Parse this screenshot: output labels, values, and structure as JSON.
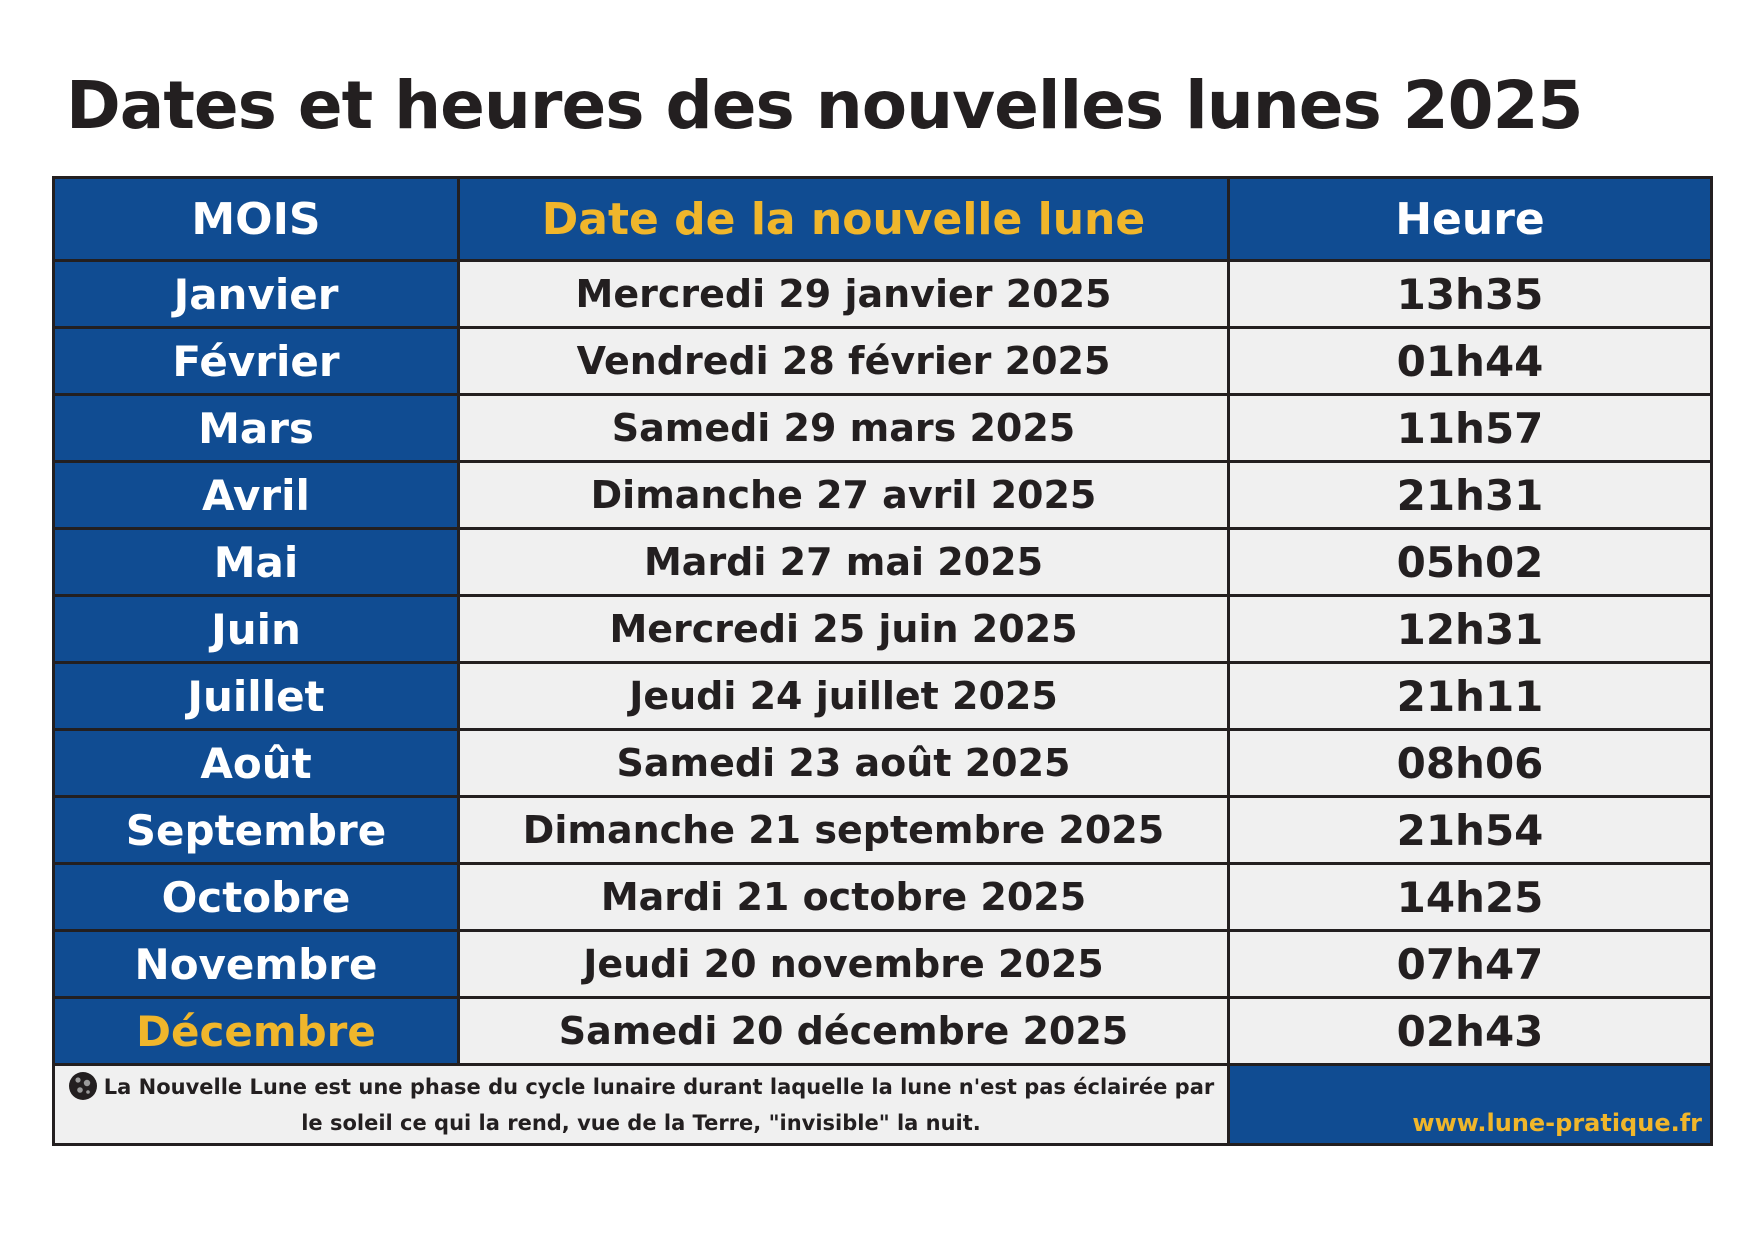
{
  "title": "Dates et heures des nouvelles lunes 2025",
  "table": {
    "headers": {
      "month": "MOIS",
      "date": "Date de la nouvelle lune",
      "time": "Heure"
    },
    "rows": [
      {
        "month": "Janvier",
        "date": "Mercredi 29 janvier 2025",
        "time": "13h35"
      },
      {
        "month": "Février",
        "date": "Vendredi 28 février 2025",
        "time": "01h44"
      },
      {
        "month": "Mars",
        "date": "Samedi 29 mars 2025",
        "time": "11h57"
      },
      {
        "month": "Avril",
        "date": "Dimanche 27 avril 2025",
        "time": "21h31"
      },
      {
        "month": "Mai",
        "date": "Mardi 27 mai 2025",
        "time": "05h02"
      },
      {
        "month": "Juin",
        "date": "Mercredi 25 juin 2025",
        "time": "12h31"
      },
      {
        "month": "Juillet",
        "date": "Jeudi 24 juillet 2025",
        "time": "21h11"
      },
      {
        "month": "Août",
        "date": "Samedi 23 août 2025",
        "time": "08h06"
      },
      {
        "month": "Septembre",
        "date": "Dimanche 21 septembre 2025",
        "time": "21h54"
      },
      {
        "month": "Octobre",
        "date": "Mardi 21 octobre 2025",
        "time": "14h25"
      },
      {
        "month": "Novembre",
        "date": "Jeudi 20 novembre 2025",
        "time": "07h47"
      },
      {
        "month": "Décembre",
        "date": "Samedi 20 décembre 2025",
        "time": "02h43"
      }
    ]
  },
  "footer": {
    "icon": "new-moon-icon",
    "note": "La Nouvelle Lune est une phase du cycle lunaire durant laquelle la lune n'est pas éclairée par le soleil ce qui la rend, vue de la Terre, \"invisible\" la nuit.",
    "website": "www.lune-pratique.fr"
  },
  "colors": {
    "blue": "#104c92",
    "gold": "#f0b62b",
    "cell_bg": "#f0f0f0",
    "text": "#231f20"
  }
}
